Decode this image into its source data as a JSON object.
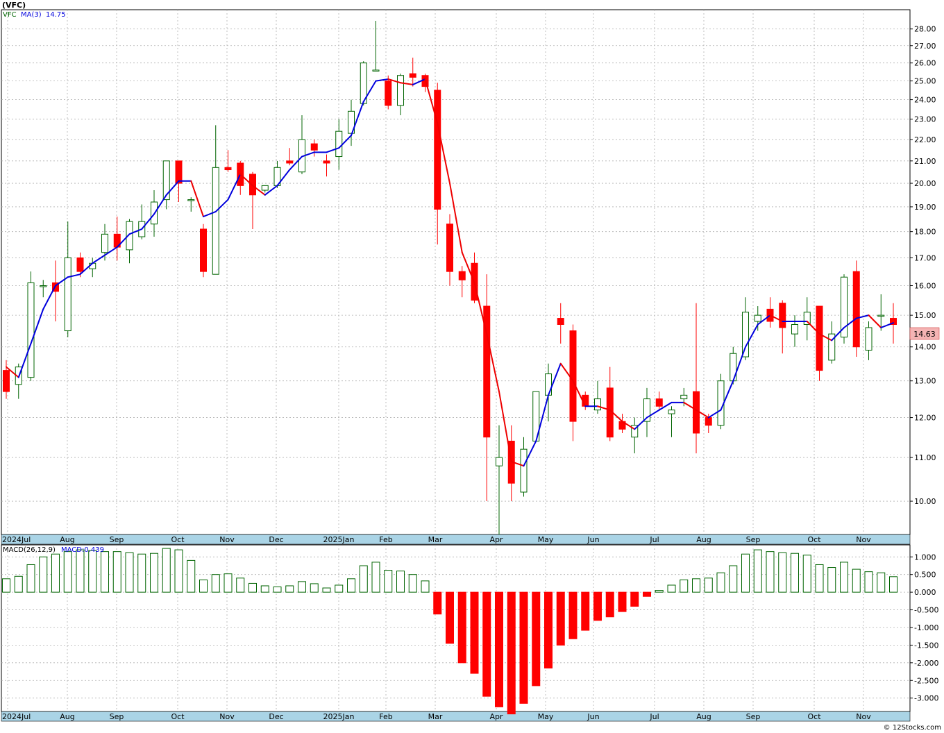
{
  "title": "(VFC)",
  "legend": {
    "symbol": "VFC",
    "ma_label": "MA(3)",
    "ma_value": "14.75"
  },
  "last_price_label": "14.63",
  "watermark": "© 12Stocks.com",
  "colors": {
    "up": "#006400",
    "down": "#ff0000",
    "ma_up": "#0000dd",
    "ma_down": "#ee0000",
    "axis_band": "#aad4e6"
  },
  "x_labels": [
    "2024Jul",
    "Aug",
    "Sep",
    "Oct",
    "Nov",
    "Dec",
    "2025Jan",
    "Feb",
    "Mar",
    "Apr",
    "May",
    "Jun",
    "Jul",
    "Aug",
    "Sep",
    "Oct",
    "Nov"
  ],
  "macd_label": "MACD(26,12,9)",
  "macd_value_label": "MACD:0.439",
  "chart_data": [
    {
      "type": "candlestick",
      "interval": "weekly",
      "y_ticks": [
        "28.00",
        "27.00",
        "26.00",
        "25.00",
        "24.00",
        "23.00",
        "22.00",
        "21.00",
        "20.00",
        "19.00",
        "18.00",
        "17.00",
        "16.00",
        "15.00",
        "14.00",
        "13.00",
        "12.00",
        "11.00",
        "10.00"
      ],
      "y_scale": "log",
      "ylim": [
        9.3,
        29.2
      ],
      "candles": [
        {
          "o": 13.3,
          "h": 13.6,
          "l": 12.5,
          "c": 12.7
        },
        {
          "o": 12.9,
          "h": 13.5,
          "l": 12.5,
          "c": 13.4
        },
        {
          "o": 13.1,
          "h": 16.5,
          "l": 13.0,
          "c": 16.1
        },
        {
          "o": 16.0,
          "h": 16.2,
          "l": 15.6,
          "c": 16.0
        },
        {
          "o": 16.1,
          "h": 16.9,
          "l": 14.8,
          "c": 15.8
        },
        {
          "o": 14.5,
          "h": 18.4,
          "l": 14.3,
          "c": 17.0
        },
        {
          "o": 17.0,
          "h": 17.2,
          "l": 16.3,
          "c": 16.5
        },
        {
          "o": 16.6,
          "h": 17.0,
          "l": 16.3,
          "c": 16.8
        },
        {
          "o": 17.2,
          "h": 18.3,
          "l": 16.9,
          "c": 17.9
        },
        {
          "o": 17.9,
          "h": 18.6,
          "l": 16.9,
          "c": 17.4
        },
        {
          "o": 17.3,
          "h": 18.5,
          "l": 16.8,
          "c": 18.4
        },
        {
          "o": 17.8,
          "h": 19.1,
          "l": 17.7,
          "c": 18.4
        },
        {
          "o": 18.3,
          "h": 19.7,
          "l": 17.8,
          "c": 19.2
        },
        {
          "o": 19.3,
          "h": 21.0,
          "l": 18.9,
          "c": 21.0
        },
        {
          "o": 21.0,
          "h": 21.0,
          "l": 19.2,
          "c": 20.0
        },
        {
          "o": 19.3,
          "h": 19.4,
          "l": 18.8,
          "c": 19.3
        },
        {
          "o": 18.1,
          "h": 18.3,
          "l": 16.3,
          "c": 16.5
        },
        {
          "o": 16.4,
          "h": 22.7,
          "l": 16.4,
          "c": 20.7
        },
        {
          "o": 20.7,
          "h": 21.5,
          "l": 20.5,
          "c": 20.6
        },
        {
          "o": 20.9,
          "h": 21.0,
          "l": 19.5,
          "c": 19.9
        },
        {
          "o": 20.4,
          "h": 20.5,
          "l": 18.1,
          "c": 19.5
        },
        {
          "o": 19.7,
          "h": 19.9,
          "l": 19.6,
          "c": 19.9
        },
        {
          "o": 19.9,
          "h": 21.0,
          "l": 19.8,
          "c": 20.7
        },
        {
          "o": 21.0,
          "h": 21.6,
          "l": 20.8,
          "c": 20.9
        },
        {
          "o": 20.5,
          "h": 23.2,
          "l": 20.4,
          "c": 22.0
        },
        {
          "o": 21.8,
          "h": 22.0,
          "l": 21.2,
          "c": 21.5
        },
        {
          "o": 21.0,
          "h": 21.3,
          "l": 20.3,
          "c": 20.9
        },
        {
          "o": 21.2,
          "h": 23.0,
          "l": 20.6,
          "c": 22.4
        },
        {
          "o": 22.3,
          "h": 24.0,
          "l": 21.7,
          "c": 23.4
        },
        {
          "o": 23.8,
          "h": 26.1,
          "l": 23.7,
          "c": 26.0
        },
        {
          "o": 25.6,
          "h": 28.5,
          "l": 25.6,
          "c": 25.6
        },
        {
          "o": 25.0,
          "h": 25.3,
          "l": 23.5,
          "c": 23.7
        },
        {
          "o": 23.7,
          "h": 25.4,
          "l": 23.2,
          "c": 25.3
        },
        {
          "o": 25.4,
          "h": 26.3,
          "l": 24.7,
          "c": 25.2
        },
        {
          "o": 25.3,
          "h": 25.4,
          "l": 24.4,
          "c": 24.7
        },
        {
          "o": 24.5,
          "h": 24.9,
          "l": 17.5,
          "c": 18.9
        },
        {
          "o": 18.3,
          "h": 18.7,
          "l": 16.0,
          "c": 16.5
        },
        {
          "o": 16.5,
          "h": 16.7,
          "l": 15.6,
          "c": 16.2
        },
        {
          "o": 16.8,
          "h": 17.2,
          "l": 15.4,
          "c": 15.5
        },
        {
          "o": 15.3,
          "h": 16.4,
          "l": 10.0,
          "c": 11.5
        },
        {
          "o": 10.8,
          "h": 11.8,
          "l": 9.3,
          "c": 11.0
        },
        {
          "o": 11.4,
          "h": 11.8,
          "l": 10.0,
          "c": 10.4
        },
        {
          "o": 10.2,
          "h": 11.5,
          "l": 10.1,
          "c": 11.2
        },
        {
          "o": 11.4,
          "h": 12.7,
          "l": 11.4,
          "c": 12.7
        },
        {
          "o": 12.6,
          "h": 13.5,
          "l": 11.9,
          "c": 13.2
        },
        {
          "o": 14.9,
          "h": 15.4,
          "l": 14.1,
          "c": 14.7
        },
        {
          "o": 14.5,
          "h": 14.7,
          "l": 11.4,
          "c": 11.9
        },
        {
          "o": 12.6,
          "h": 12.7,
          "l": 12.2,
          "c": 12.3
        },
        {
          "o": 12.2,
          "h": 13.0,
          "l": 12.1,
          "c": 12.5
        },
        {
          "o": 12.8,
          "h": 13.4,
          "l": 11.4,
          "c": 11.5
        },
        {
          "o": 11.9,
          "h": 12.1,
          "l": 11.6,
          "c": 11.7
        },
        {
          "o": 11.5,
          "h": 12.0,
          "l": 11.1,
          "c": 11.8
        },
        {
          "o": 11.9,
          "h": 12.8,
          "l": 11.5,
          "c": 12.5
        },
        {
          "o": 12.5,
          "h": 12.7,
          "l": 12.2,
          "c": 12.3
        },
        {
          "o": 12.1,
          "h": 12.3,
          "l": 11.5,
          "c": 12.2
        },
        {
          "o": 12.5,
          "h": 12.8,
          "l": 12.3,
          "c": 12.6
        },
        {
          "o": 12.7,
          "h": 15.4,
          "l": 11.1,
          "c": 11.6
        },
        {
          "o": 12.0,
          "h": 12.1,
          "l": 11.6,
          "c": 11.8
        },
        {
          "o": 11.8,
          "h": 13.2,
          "l": 11.7,
          "c": 13.0
        },
        {
          "o": 13.0,
          "h": 14.0,
          "l": 12.9,
          "c": 13.8
        },
        {
          "o": 13.7,
          "h": 15.6,
          "l": 13.6,
          "c": 15.1
        },
        {
          "o": 14.8,
          "h": 15.3,
          "l": 14.5,
          "c": 15.0
        },
        {
          "o": 15.2,
          "h": 15.6,
          "l": 14.6,
          "c": 14.8
        },
        {
          "o": 15.4,
          "h": 15.5,
          "l": 13.8,
          "c": 14.6
        },
        {
          "o": 14.4,
          "h": 15.0,
          "l": 14.0,
          "c": 14.7
        },
        {
          "o": 14.7,
          "h": 15.6,
          "l": 14.2,
          "c": 15.1
        },
        {
          "o": 15.3,
          "h": 15.3,
          "l": 13.0,
          "c": 13.3
        },
        {
          "o": 13.6,
          "h": 14.8,
          "l": 13.5,
          "c": 14.4
        },
        {
          "o": 14.3,
          "h": 16.4,
          "l": 14.1,
          "c": 16.3
        },
        {
          "o": 16.5,
          "h": 16.9,
          "l": 13.7,
          "c": 14.0
        },
        {
          "o": 13.9,
          "h": 14.8,
          "l": 13.6,
          "c": 14.6
        },
        {
          "o": 15.0,
          "h": 15.7,
          "l": 14.5,
          "c": 15.0
        },
        {
          "o": 14.9,
          "h": 15.4,
          "l": 14.1,
          "c": 14.7
        }
      ],
      "ma_values": [
        13.4,
        13.1,
        14.1,
        15.2,
        16.0,
        16.3,
        16.4,
        16.8,
        17.1,
        17.4,
        17.9,
        18.1,
        18.7,
        19.5,
        20.1,
        20.1,
        18.6,
        18.8,
        19.3,
        20.4,
        19.9,
        19.5,
        19.9,
        20.6,
        21.2,
        21.4,
        21.4,
        21.6,
        22.2,
        23.9,
        25.0,
        25.1,
        24.9,
        24.8,
        25.1,
        22.8,
        20.0,
        17.2,
        16.1,
        14.4,
        12.7,
        10.9,
        10.8,
        11.4,
        12.6,
        13.5,
        13.0,
        12.3,
        12.3,
        12.2,
        11.9,
        11.7,
        12.0,
        12.2,
        12.4,
        12.4,
        12.2,
        12.0,
        12.2,
        13.0,
        14.0,
        14.7,
        15.0,
        14.8,
        14.8,
        14.8,
        14.4,
        14.2,
        14.6,
        14.9,
        15.0,
        14.6,
        14.75
      ]
    },
    {
      "type": "bar",
      "name": "MACD(26,12,9)",
      "y_ticks": [
        "1.000",
        "0.500",
        "0.000",
        "-0.500",
        "-1.000",
        "-1.500",
        "-2.000",
        "-2.500",
        "-3.000"
      ],
      "ylim": [
        -3.38,
        1.34
      ],
      "values": [
        0.38,
        0.45,
        0.78,
        1.0,
        1.08,
        1.15,
        1.2,
        1.18,
        1.15,
        1.15,
        1.12,
        1.08,
        1.1,
        1.24,
        1.2,
        0.9,
        0.35,
        0.5,
        0.52,
        0.4,
        0.25,
        0.18,
        0.15,
        0.18,
        0.3,
        0.24,
        0.12,
        0.2,
        0.38,
        0.75,
        0.85,
        0.62,
        0.6,
        0.5,
        0.32,
        -0.62,
        -1.45,
        -2.0,
        -2.3,
        -2.95,
        -3.25,
        -3.45,
        -3.15,
        -2.65,
        -2.15,
        -1.5,
        -1.32,
        -1.08,
        -0.8,
        -0.7,
        -0.55,
        -0.4,
        -0.12,
        0.05,
        0.2,
        0.35,
        0.38,
        0.4,
        0.55,
        0.75,
        1.08,
        1.2,
        1.15,
        1.12,
        1.1,
        1.05,
        0.78,
        0.7,
        0.85,
        0.65,
        0.58,
        0.55,
        0.439
      ]
    }
  ]
}
